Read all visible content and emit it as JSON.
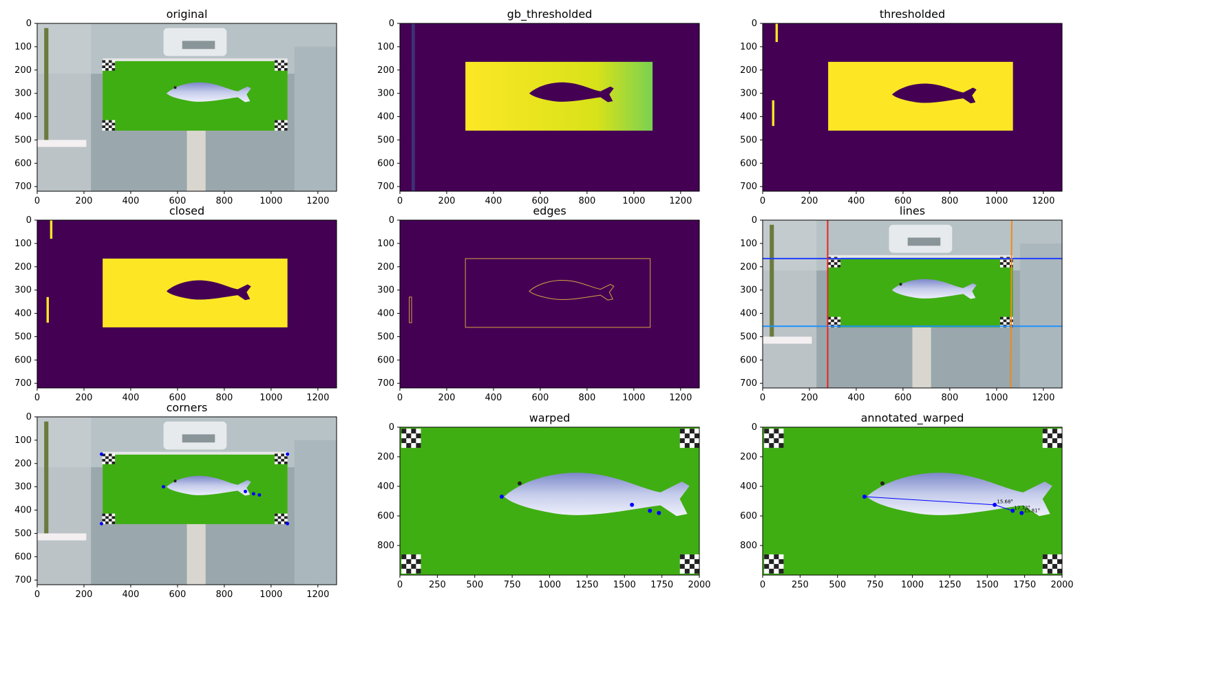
{
  "colors": {
    "viridis_dark": "#440154",
    "viridis_yellow": "#fde725",
    "edge_orange": "#d9a441",
    "board_green": "#3fae12",
    "line_blue": "#1f3cff",
    "line_light_blue": "#1e90ff",
    "line_red": "#e8231f",
    "line_orange": "#f08a1a",
    "point_blue": "#0000ff"
  },
  "panels": [
    {
      "title": "original",
      "content": "photo",
      "xticks": [
        "0",
        "200",
        "400",
        "600",
        "800",
        "1000",
        "1200"
      ],
      "yticks": [
        "0",
        "100",
        "200",
        "300",
        "400",
        "500",
        "600",
        "700"
      ]
    },
    {
      "title": "gb_thresholded",
      "content": "gb",
      "xticks": [
        "0",
        "200",
        "400",
        "600",
        "800",
        "1000",
        "1200"
      ],
      "yticks": [
        "0",
        "100",
        "200",
        "300",
        "400",
        "500",
        "600",
        "700"
      ]
    },
    {
      "title": "thresholded",
      "content": "thresh",
      "xticks": [
        "0",
        "200",
        "400",
        "600",
        "800",
        "1000",
        "1200"
      ],
      "yticks": [
        "0",
        "100",
        "200",
        "300",
        "400",
        "500",
        "600",
        "700"
      ]
    },
    {
      "title": "closed",
      "content": "closed",
      "xticks": [
        "0",
        "200",
        "400",
        "600",
        "800",
        "1000",
        "1200"
      ],
      "yticks": [
        "0",
        "100",
        "200",
        "300",
        "400",
        "500",
        "600",
        "700"
      ]
    },
    {
      "title": "edges",
      "content": "edges",
      "xticks": [
        "0",
        "200",
        "400",
        "600",
        "800",
        "1000",
        "1200"
      ],
      "yticks": [
        "0",
        "100",
        "200",
        "300",
        "400",
        "500",
        "600",
        "700"
      ]
    },
    {
      "title": "lines",
      "content": "lines",
      "xticks": [
        "0",
        "200",
        "400",
        "600",
        "800",
        "1000",
        "1200"
      ],
      "yticks": [
        "0",
        "100",
        "200",
        "300",
        "400",
        "500",
        "600",
        "700"
      ]
    },
    {
      "title": "corners",
      "content": "corners",
      "xticks": [
        "0",
        "200",
        "400",
        "600",
        "800",
        "1000",
        "1200"
      ],
      "yticks": [
        "0",
        "100",
        "200",
        "300",
        "400",
        "500",
        "600",
        "700"
      ]
    },
    {
      "title": "warped",
      "content": "warped",
      "xticks": [
        "0",
        "250",
        "500",
        "750",
        "1000",
        "1250",
        "1500",
        "1750",
        "2000"
      ],
      "yticks": [
        "0",
        "200",
        "400",
        "600",
        "800"
      ]
    },
    {
      "title": "annotated_warped",
      "content": "annotated",
      "xticks": [
        "0",
        "250",
        "500",
        "750",
        "1000",
        "1250",
        "1500",
        "1750",
        "2000"
      ],
      "yticks": [
        "0",
        "200",
        "400",
        "600",
        "800"
      ],
      "annotations": [
        "15.68°",
        "17.73°",
        "15.81°"
      ]
    }
  ]
}
